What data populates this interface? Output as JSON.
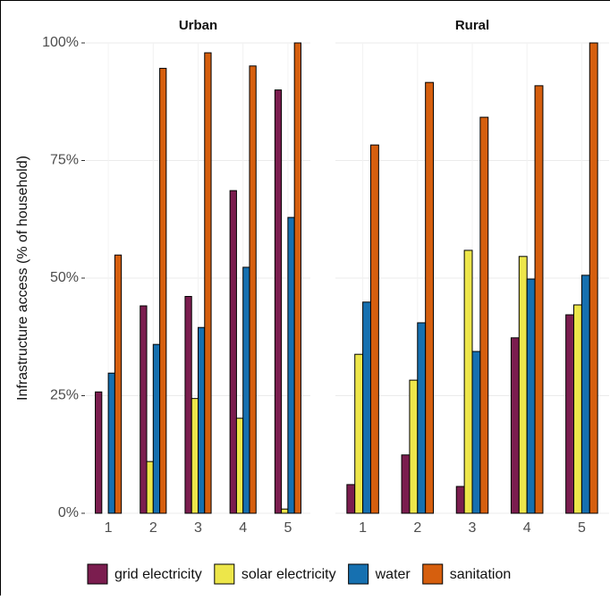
{
  "chart_data": [
    {
      "type": "bar",
      "title": "Urban",
      "ylabel": "Infrastructure access (% of household)",
      "categories": [
        "1",
        "2",
        "3",
        "4",
        "5"
      ],
      "ylim": [
        0,
        100
      ],
      "yticks": [
        {
          "value": 0,
          "label": "0%"
        },
        {
          "value": 25,
          "label": "25%"
        },
        {
          "value": 50,
          "label": "50%"
        },
        {
          "value": 75,
          "label": "75%"
        },
        {
          "value": 100,
          "label": "100%"
        }
      ],
      "grid": true,
      "legend": "bottom",
      "series": [
        {
          "name": "grid electricity",
          "color": "#7b1d4f",
          "values": [
            25.8,
            44.1,
            46.1,
            68.6,
            90
          ]
        },
        {
          "name": "solar electricity",
          "color": "#ede64a",
          "values": [
            0,
            11,
            24.4,
            20.2,
            0.9
          ]
        },
        {
          "name": "water",
          "color": "#1670b0",
          "values": [
            29.8,
            35.9,
            39.5,
            52.3,
            62.9
          ]
        },
        {
          "name": "sanitation",
          "color": "#d65f0e",
          "values": [
            54.9,
            94.6,
            97.9,
            95.1,
            100
          ]
        }
      ]
    },
    {
      "type": "bar",
      "title": "Rural",
      "categories": [
        "1",
        "2",
        "3",
        "4",
        "5"
      ],
      "ylim": [
        0,
        100
      ],
      "yticks": [
        0,
        25,
        50,
        75,
        100
      ],
      "grid": true,
      "series": [
        {
          "color": "#7b1d4f",
          "values": [
            6.1,
            12.4,
            5.7,
            37.3,
            42.2
          ]
        },
        {
          "color": "#ede64a",
          "values": [
            33.8,
            28.3,
            55.9,
            54.6,
            44.3
          ]
        },
        {
          "color": "#1670b0",
          "values": [
            44.9,
            40.5,
            34.4,
            49.8,
            50.6
          ]
        },
        {
          "color": "#d65f0e",
          "values": [
            78.3,
            91.6,
            84.2,
            90.9,
            100
          ]
        }
      ]
    }
  ]
}
